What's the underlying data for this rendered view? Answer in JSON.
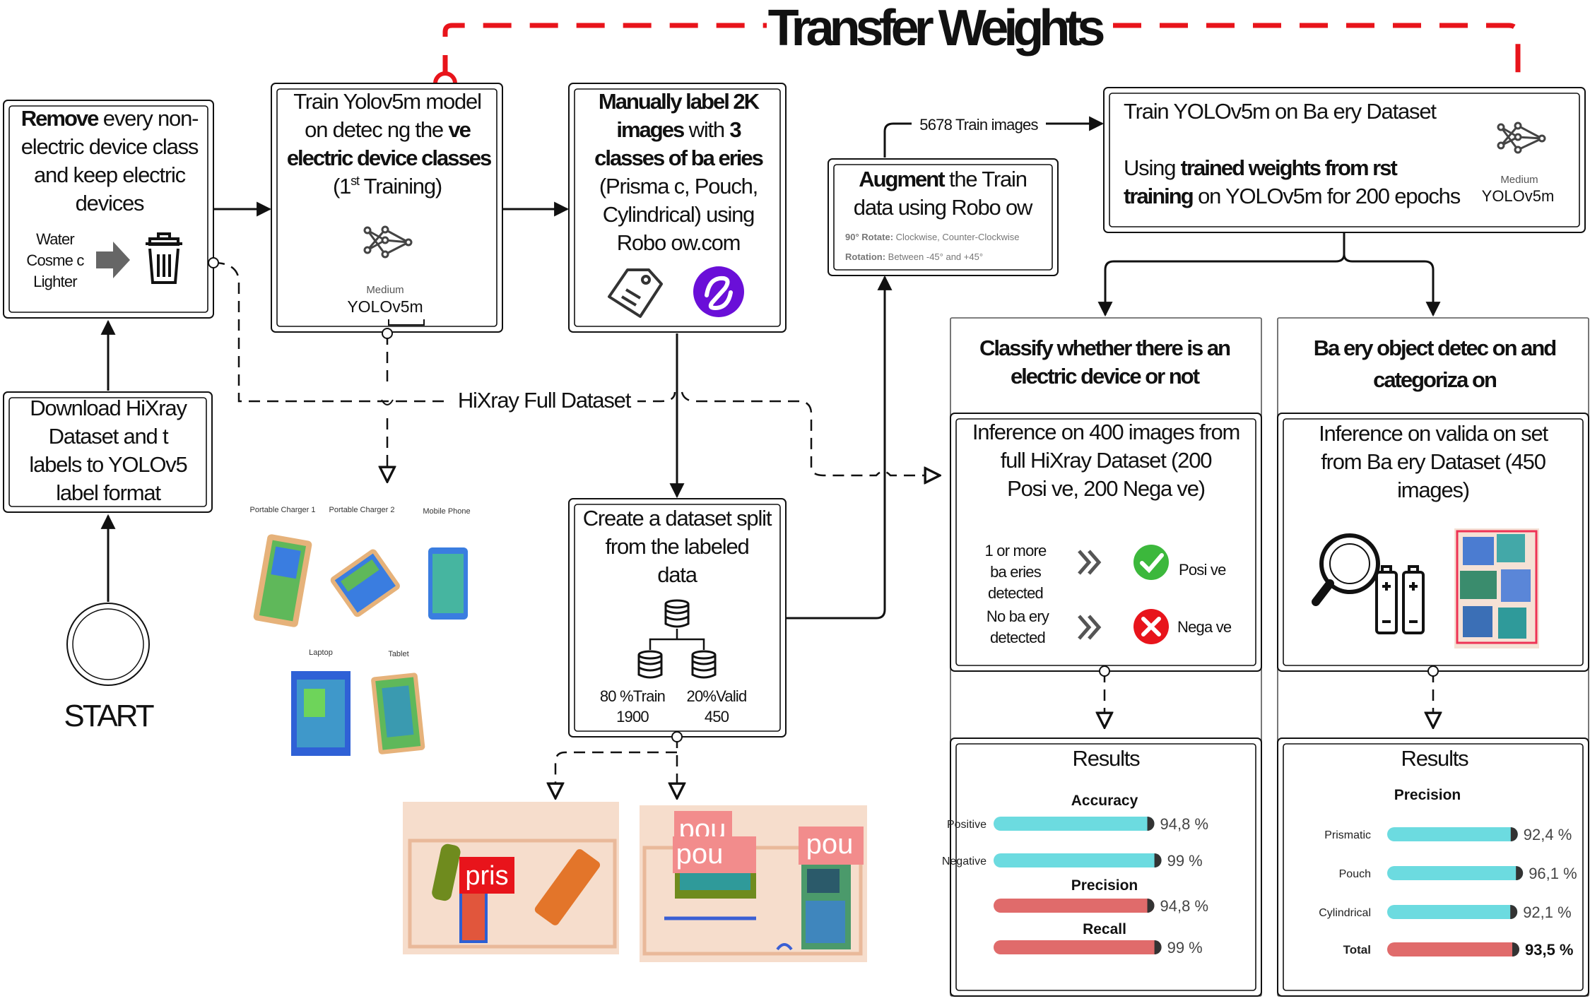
{
  "title": "Transfer Weights",
  "start_label": "START",
  "download": [
    "Download HiXray",
    "Dataset and  t",
    "labels to YOLOv5",
    "label format"
  ],
  "remove": {
    "line1_bold": "Remove",
    "line1_rest": " every non-",
    "lines": [
      "electric device class",
      "and keep electric",
      "devices"
    ],
    "items": [
      "Water",
      "Cosme  c",
      "Lighter"
    ]
  },
  "train1": {
    "line1": "Train Yolov5m model",
    "line2a": "on detec  ng the ",
    "line2b": "ve",
    "line3": "electric device classes",
    "line4": "(1",
    "line4_sup": "st",
    "line4_rest": " Training)",
    "model_size": "Medium",
    "model_name": "YOLOv5m"
  },
  "label": {
    "l1": "Manually label 2K",
    "l2a": "images",
    "l2b": " with ",
    "l2c": "3",
    "l3": "classes of ba  eries",
    "l4": "(Prisma  c, Pouch,",
    "l5": "Cylindrical) using",
    "l6": "Robo  ow.com"
  },
  "augment": {
    "title_bold": "Augment",
    "title_rest": " the Train",
    "line2": "data using Robo  ow",
    "rot90_label": "90° Rotate:",
    "rot90_value": " Clockwise, Counter-Clockwise",
    "rot_label": "Rotation:",
    "rot_value": " Between -45° and +45°"
  },
  "train_images_label": "5678 Train images",
  "train2": {
    "line1": "Train YOLOv5m on Ba  ery Dataset",
    "line2a": "Using ",
    "line2b": "trained weights from  rst",
    "line3a": "training",
    "line3b": " on YOLOv5m for 200 epochs",
    "model_size": "Medium",
    "model_name": "YOLOv5m"
  },
  "split": {
    "lines": [
      "Create a dataset split",
      "from the labeled",
      "data"
    ],
    "train_label": "80 %Train",
    "train_count": "1900",
    "valid_label": "20%Valid",
    "valid_count": "450"
  },
  "hixray_label": "HiXray Full Dataset",
  "devices": [
    "Portable Charger 1",
    "Portable Charger 2",
    "Mobile Phone",
    "Laptop",
    "Tablet"
  ],
  "scan_tags": [
    "pris",
    "pou",
    "pou",
    "pou"
  ],
  "classify": {
    "heading": [
      "Classify whether there is an",
      "electric device or not"
    ],
    "inference": [
      "Inference on 400 images from",
      "full HiXray Dataset (200",
      "Posi  ve, 200 Nega  ve)"
    ],
    "rule1": [
      "1 or more",
      "ba  eries",
      "detected"
    ],
    "rule2": [
      "No ba  ery",
      "detected"
    ],
    "positive": "Posi  ve",
    "negative": "Nega  ve"
  },
  "detect": {
    "heading": [
      "Ba  ery object detec  on and",
      "categoriza  on"
    ],
    "inference": [
      "Inference on valida  on set",
      "from Ba  ery Dataset (450",
      "images)"
    ]
  },
  "results_left": {
    "title": "Results",
    "accuracy_heading": "Accuracy",
    "precision_heading": "Precision",
    "recall_heading": "Recall",
    "bars": [
      {
        "label": "Positive",
        "value": 94.8,
        "text": "94,8 %",
        "color": "#6cdbe0"
      },
      {
        "label": "Negative",
        "value": 99,
        "text": "99 %",
        "color": "#6cdbe0"
      },
      {
        "label": "",
        "value": 94.8,
        "text": "94,8 %",
        "color": "#e06b6b"
      },
      {
        "label": "",
        "value": 99,
        "text": "99 %",
        "color": "#e06b6b"
      }
    ]
  },
  "results_right": {
    "title": "Results",
    "precision_heading": "Precision",
    "bars": [
      {
        "label": "Prismatic",
        "value": 92.4,
        "text": "92,4 %",
        "color": "#6cdbe0"
      },
      {
        "label": "Pouch",
        "value": 96.1,
        "text": "96,1 %",
        "color": "#6cdbe0"
      },
      {
        "label": "Cylindrical",
        "value": 92.1,
        "text": "92,1 %",
        "color": "#6cdbe0"
      },
      {
        "label": "Total",
        "value": 93.5,
        "text": "93,5 %",
        "color": "#e06b6b"
      }
    ]
  },
  "colors": {
    "accent_red": "#e8141b",
    "bar_cyan": "#6cdbe0",
    "bar_red": "#e06b6b",
    "roboflow_purple": "#6a0fd8"
  }
}
